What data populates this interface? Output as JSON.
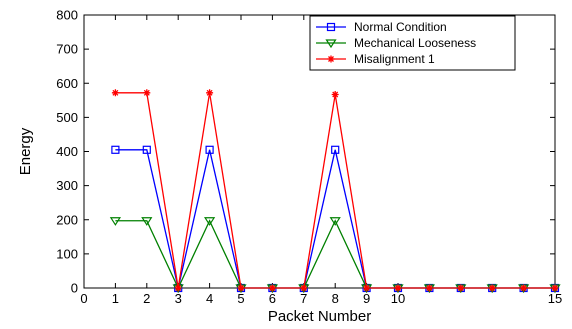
{
  "chart_data": {
    "type": "line",
    "title": "",
    "xlabel": "Packet Number",
    "ylabel": "Energy",
    "xlim": [
      0,
      15
    ],
    "ylim": [
      0,
      800
    ],
    "xticks": [
      0,
      1,
      2,
      3,
      4,
      5,
      6,
      7,
      8,
      9,
      10,
      15
    ],
    "yticks": [
      0,
      100,
      200,
      300,
      400,
      500,
      600,
      700,
      800
    ],
    "grid": false,
    "legend_position": "top-right",
    "x": [
      1,
      2,
      3,
      4,
      5,
      6,
      7,
      8,
      9,
      10,
      11,
      12,
      13,
      14,
      15
    ],
    "series": [
      {
        "name": "Normal Condition",
        "color": "#0000ff",
        "marker": "square",
        "values": [
          405,
          405,
          0,
          405,
          0,
          0,
          0,
          405,
          0,
          0,
          0,
          0,
          0,
          0,
          0
        ]
      },
      {
        "name": "Mechanical Looseness",
        "color": "#008000",
        "marker": "triangle-down",
        "values": [
          197,
          197,
          0,
          197,
          0,
          0,
          0,
          197,
          0,
          0,
          0,
          0,
          0,
          0,
          0
        ]
      },
      {
        "name": "Misalignment 1",
        "color": "#ff0000",
        "marker": "star",
        "values": [
          572,
          572,
          0,
          572,
          0,
          0,
          0,
          567,
          0,
          0,
          0,
          0,
          0,
          0,
          0
        ]
      }
    ]
  }
}
